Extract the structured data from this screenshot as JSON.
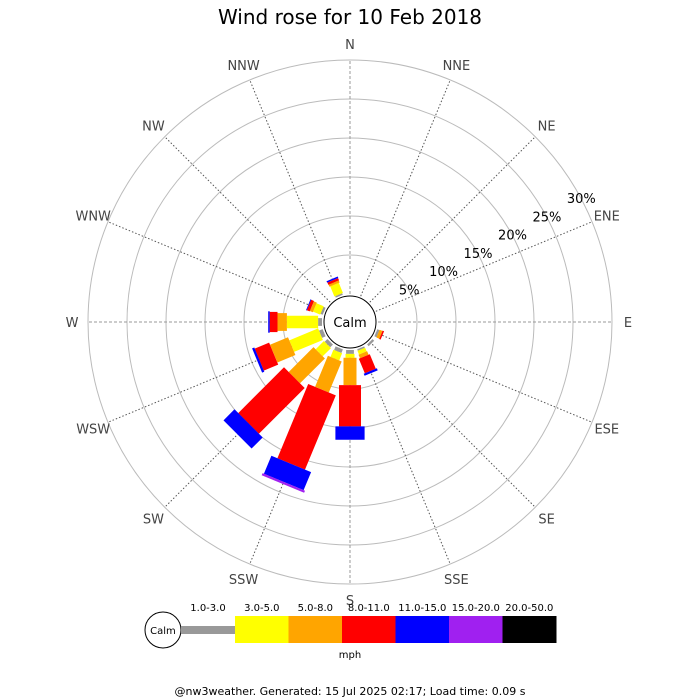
{
  "chart_data": {
    "type": "wind-rose",
    "title": "Wind rose for 10 Feb 2018",
    "center_label": "Calm",
    "directions": [
      "N",
      "NNE",
      "NE",
      "ENE",
      "E",
      "ESE",
      "SE",
      "SSE",
      "S",
      "SSW",
      "SW",
      "WSW",
      "W",
      "WNW",
      "NW",
      "NNW"
    ],
    "ring_labels": [
      "5%",
      "10%",
      "15%",
      "20%",
      "25%",
      "30%"
    ],
    "rmax_percent": 30,
    "grid": true,
    "speed_bins": [
      {
        "label": "1.0-3.0",
        "color": "#999999"
      },
      {
        "label": "3.0-5.0",
        "color": "#ffff00"
      },
      {
        "label": "5.0-8.0",
        "color": "#ffa500"
      },
      {
        "label": "8.0-11.0",
        "color": "#ff0000"
      },
      {
        "label": "11.0-15.0",
        "color": "#0000ff"
      },
      {
        "label": "15.0-20.0",
        "color": "#a020f0"
      },
      {
        "label": "20.0-50.0",
        "color": "#000000"
      }
    ],
    "units": "mph",
    "series": [
      {
        "direction": "N",
        "values": [
          0,
          0,
          0,
          0,
          0,
          0,
          0
        ]
      },
      {
        "direction": "NNE",
        "values": [
          0,
          0,
          0,
          0,
          0,
          0,
          0
        ]
      },
      {
        "direction": "NE",
        "values": [
          0,
          0,
          0,
          0,
          0,
          0,
          0
        ]
      },
      {
        "direction": "ENE",
        "values": [
          0,
          0,
          0,
          0,
          0,
          0,
          0
        ]
      },
      {
        "direction": "E",
        "values": [
          0,
          0,
          0,
          0,
          0,
          0,
          0
        ]
      },
      {
        "direction": "ESE",
        "values": [
          0.3,
          0,
          0.4,
          0.2,
          0,
          0,
          0
        ]
      },
      {
        "direction": "SE",
        "values": [
          0.3,
          0,
          0,
          0,
          0,
          0,
          0
        ]
      },
      {
        "direction": "SSE",
        "values": [
          0.2,
          0.5,
          0.5,
          2.0,
          0.3,
          0,
          0
        ]
      },
      {
        "direction": "S",
        "values": [
          0.5,
          0.5,
          3.5,
          5.3,
          1.7,
          0,
          0
        ]
      },
      {
        "direction": "SSW",
        "values": [
          0.5,
          1.0,
          4.3,
          10.3,
          2.5,
          0.3,
          0
        ]
      },
      {
        "direction": "SW",
        "values": [
          0.5,
          1.5,
          4.5,
          8.3,
          2.0,
          0,
          0
        ]
      },
      {
        "direction": "WSW",
        "values": [
          0.5,
          4.0,
          2.5,
          2.0,
          0.3,
          0,
          0
        ]
      },
      {
        "direction": "W",
        "values": [
          0.5,
          4.0,
          1.2,
          1.0,
          0.2,
          0,
          0
        ]
      },
      {
        "direction": "WNW",
        "values": [
          0.3,
          1.0,
          0.4,
          0.4,
          0.1,
          0,
          0
        ]
      },
      {
        "direction": "NW",
        "values": [
          0,
          0,
          0,
          0,
          0,
          0,
          0
        ]
      },
      {
        "direction": "NNW",
        "values": [
          0.2,
          1.4,
          0.3,
          0.3,
          0.2,
          0,
          0
        ]
      }
    ]
  },
  "footer": "@nw3weather. Generated: 15 Jul 2025 02:17; Load time: 0.09 s"
}
